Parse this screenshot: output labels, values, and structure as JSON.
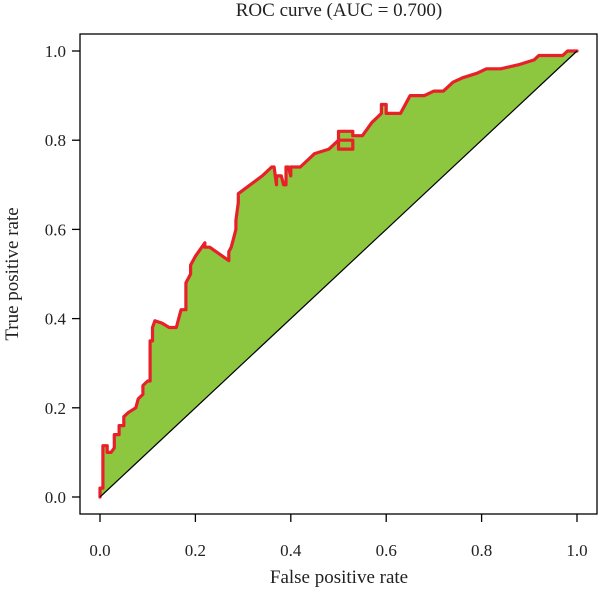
{
  "chart_data": {
    "type": "area",
    "title": "ROC curve (AUC = 0.700)",
    "xlabel": "False positive rate",
    "ylabel": "True positive rate",
    "xlim": [
      0,
      1
    ],
    "ylim": [
      0,
      1
    ],
    "x_ticks": [
      "0.0",
      "0.2",
      "0.4",
      "0.6",
      "0.8",
      "1.0"
    ],
    "y_ticks": [
      "0.0",
      "0.2",
      "0.4",
      "0.6",
      "0.8",
      "1.0"
    ],
    "grid": false,
    "legend": "none",
    "colors": {
      "curve": "#e8202a",
      "fill": "#8dc63f",
      "diagonal": "#000000",
      "axis": "#000000"
    },
    "reference_line": {
      "x": [
        0,
        1
      ],
      "y": [
        0,
        1
      ]
    },
    "series": [
      {
        "x": [
          0.0,
          0.0,
          0.006,
          0.006,
          0.015,
          0.015,
          0.023,
          0.03,
          0.03,
          0.04,
          0.04,
          0.05,
          0.05,
          0.06,
          0.075,
          0.08,
          0.09,
          0.09,
          0.1,
          0.105,
          0.105,
          0.11,
          0.11,
          0.115,
          0.13,
          0.145,
          0.16,
          0.165,
          0.17,
          0.18,
          0.18,
          0.19,
          0.19,
          0.2,
          0.22,
          0.22,
          0.22,
          0.23,
          0.27,
          0.27,
          0.275,
          0.28,
          0.285,
          0.285,
          0.29,
          0.29,
          0.34,
          0.36,
          0.365,
          0.37,
          0.37,
          0.38,
          0.385,
          0.39,
          0.39,
          0.395,
          0.4,
          0.4,
          0.42,
          0.43,
          0.44,
          0.45,
          0.48,
          0.5,
          0.51,
          0.53,
          0.53,
          0.5,
          0.5,
          0.53,
          0.53,
          0.55,
          0.57,
          0.57,
          0.58,
          0.59,
          0.59,
          0.6,
          0.6,
          0.63,
          0.64,
          0.65,
          0.66,
          0.68,
          0.7,
          0.71,
          0.72,
          0.74,
          0.76,
          0.79,
          0.81,
          0.84,
          0.88,
          0.91,
          0.92,
          0.945,
          0.97,
          0.98,
          1.0
        ],
        "y": [
          0.0,
          0.02,
          0.02,
          0.115,
          0.115,
          0.1,
          0.1,
          0.11,
          0.14,
          0.14,
          0.16,
          0.16,
          0.18,
          0.19,
          0.2,
          0.22,
          0.23,
          0.25,
          0.26,
          0.26,
          0.35,
          0.35,
          0.38,
          0.395,
          0.39,
          0.38,
          0.38,
          0.4,
          0.42,
          0.42,
          0.48,
          0.5,
          0.52,
          0.54,
          0.57,
          0.57,
          0.56,
          0.56,
          0.53,
          0.55,
          0.56,
          0.58,
          0.6,
          0.62,
          0.66,
          0.68,
          0.72,
          0.74,
          0.74,
          0.7,
          0.72,
          0.72,
          0.7,
          0.7,
          0.74,
          0.74,
          0.72,
          0.74,
          0.74,
          0.75,
          0.76,
          0.77,
          0.78,
          0.8,
          0.8,
          0.8,
          0.78,
          0.78,
          0.82,
          0.82,
          0.81,
          0.81,
          0.84,
          0.84,
          0.85,
          0.86,
          0.88,
          0.88,
          0.86,
          0.86,
          0.88,
          0.9,
          0.9,
          0.9,
          0.91,
          0.91,
          0.91,
          0.93,
          0.94,
          0.95,
          0.96,
          0.96,
          0.97,
          0.98,
          0.99,
          0.99,
          0.99,
          1.0,
          1.0
        ]
      }
    ]
  }
}
